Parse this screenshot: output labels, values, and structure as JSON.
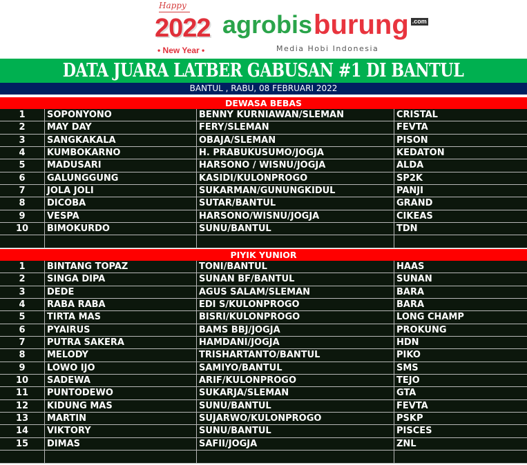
{
  "logo": {
    "happy": "Happy",
    "year": "2022",
    "new_year": "• New Year •",
    "brand_agro": "agrobis",
    "brand_burung": "burung",
    "com": ".com",
    "tagline": "Media Hobi Indonesia"
  },
  "title": "DATA JUARA LATBER GABUSAN #1 DI  BANTUL",
  "date": "BANTUL , RABU, 08 FEBRUARI 2022",
  "colors": {
    "title_bg": "#00b050",
    "date_bg": "#002060",
    "section_bg": "#ff0000",
    "table_bg": "#0c170c"
  },
  "sections": [
    {
      "name": "DEWASA BEBAS",
      "rows": [
        [
          "1",
          "SOPONYONO",
          "BENNY KURNIAWAN/SLEMAN",
          "CRISTAL"
        ],
        [
          "2",
          "MAY DAY",
          "FERY/SLEMAN",
          "FEVTA"
        ],
        [
          "3",
          "SANGKAKALA",
          "OBAJA/SLEMAN",
          "PISON"
        ],
        [
          "4",
          "KUMBOKARNO",
          "H. PRABUKUSUMO/JOGJA",
          "KEDATON"
        ],
        [
          "5",
          "MADUSARI",
          "HARSONO / WISNU/JOGJA",
          "ALDA"
        ],
        [
          "6",
          "GALUNGGUNG",
          "KASIDI/KULONPROGO",
          "SP2K"
        ],
        [
          "7",
          "JOLA JOLI",
          "SUKARMAN/GUNUNGKIDUL",
          "PANJI"
        ],
        [
          "8",
          "DICOBA",
          "SUTAR/BANTUL",
          "GRAND"
        ],
        [
          "9",
          "VESPA",
          "HARSONO/WISNU/JOGJA",
          "CIKEAS"
        ],
        [
          "10",
          "BIMOKURDO",
          "SUNU/BANTUL",
          "TDN"
        ],
        [
          "",
          "",
          "",
          ""
        ]
      ]
    },
    {
      "name": "PIYIK YUNIOR",
      "rows": [
        [
          "1",
          "BINTANG TOPAZ",
          "TONI/BANTUL",
          "HAAS"
        ],
        [
          "2",
          "SINGA DIPA",
          "SUNAN BF/BANTUL",
          "SUNAN"
        ],
        [
          "3",
          "DEDE",
          "AGUS SALAM/SLEMAN",
          "BARA"
        ],
        [
          "4",
          "RABA RABA",
          "EDI S/KULONPROGO",
          "BARA"
        ],
        [
          "5",
          "TIRTA MAS",
          " BISRI/KULONPROGO",
          "LONG CHAMP"
        ],
        [
          "6",
          "PYAIRUS",
          "BAMS BBJ/JOGJA",
          "PROKUNG"
        ],
        [
          "7",
          "PUTRA SAKERA",
          "HAMDANI/JOGJA",
          "HDN"
        ],
        [
          "8",
          "MELODY",
          "TRISHARTANTO/BANTUL",
          "PIKO"
        ],
        [
          "9",
          "LOWO IJO",
          "SAMIYO/BANTUL",
          "SMS"
        ],
        [
          "10",
          "SADEWA",
          "ARIF/KULONPROGO",
          "TEJO"
        ],
        [
          "11",
          "PUNTODEWO",
          "SUKARJA/SLEMAN",
          "GTA"
        ],
        [
          "12",
          "KIDUNG MAS",
          "SUNU/BANTUL",
          "FEVTA"
        ],
        [
          "13",
          "MARTIN",
          "SUJARWO/KULONPROGO",
          "PSKP"
        ],
        [
          "14",
          "VIKTORY",
          "SUNU/BANTUL",
          "PISCES"
        ],
        [
          "15",
          "DIMAS",
          "SAFII/JOGJA",
          "ZNL"
        ],
        [
          "",
          "",
          "",
          ""
        ]
      ]
    }
  ]
}
